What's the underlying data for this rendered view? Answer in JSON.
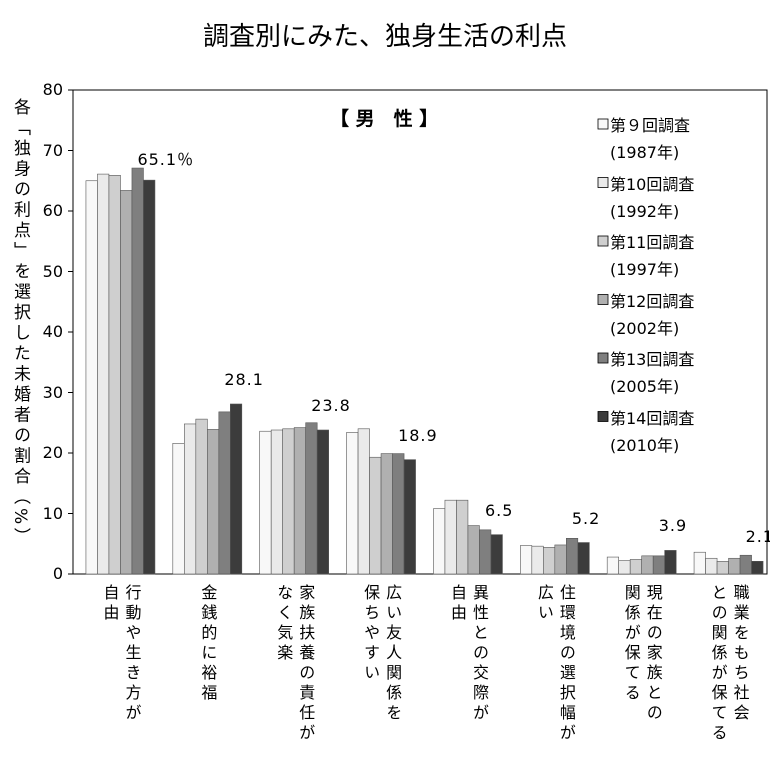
{
  "chart_data": {
    "type": "bar",
    "title": "調査別にみた、独身生活の利点",
    "subtitle": "【 男　性 】",
    "y_label": "各「独身の利点」を選択した未婚者の割合（%）",
    "categories": [
      "行動や生き方が\n自由",
      "金銭的に裕福",
      "家族扶養の責任が\nなく気楽",
      "広い友人関係を\n保ちやすい",
      "異性との交際が\n自由",
      "住環境の選択幅が\n広い",
      "現在の家族との\n関係が保てる",
      "職業をもち社会\nとの関係が保てる"
    ],
    "series": [
      {
        "name": "第９回調査\n(1987年)",
        "color": "#f8f8f8",
        "values": [
          65.0,
          21.6,
          23.6,
          23.4,
          10.8,
          4.7,
          2.8,
          3.6
        ]
      },
      {
        "name": "第10回調査\n(1992年)",
        "color": "#eaeaea",
        "values": [
          66.1,
          24.8,
          23.8,
          24.0,
          12.2,
          4.6,
          2.2,
          2.6
        ]
      },
      {
        "name": "第11回調査\n(1997年)",
        "color": "#cfcfcf",
        "values": [
          65.9,
          25.6,
          24.0,
          19.3,
          12.2,
          4.4,
          2.4,
          2.1
        ]
      },
      {
        "name": "第12回調査\n(2002年)",
        "color": "#b0b0b0",
        "values": [
          63.4,
          23.9,
          24.2,
          19.9,
          8.0,
          4.8,
          3.0,
          2.6
        ]
      },
      {
        "name": "第13回調査\n(2005年)",
        "color": "#7f7f7f",
        "values": [
          67.1,
          26.8,
          25.0,
          19.9,
          7.3,
          5.9,
          3.0,
          3.1
        ]
      },
      {
        "name": "第14回調査\n(2010年)",
        "color": "#3c3c3c",
        "values": [
          65.1,
          28.1,
          23.8,
          18.9,
          6.5,
          5.2,
          3.9,
          2.1
        ],
        "value_labels": [
          "65.1％",
          "28.1",
          "23.8",
          "18.9",
          "6.5",
          "5.2",
          "3.9",
          "2.1"
        ]
      }
    ],
    "ylim": [
      0,
      80
    ],
    "yticks": [
      0,
      10,
      20,
      30,
      40,
      50,
      60,
      70,
      80
    ],
    "grid": false
  }
}
